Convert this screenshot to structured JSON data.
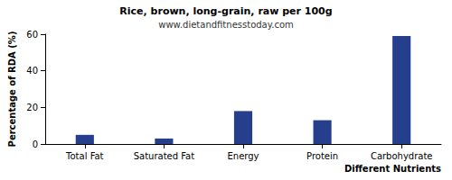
{
  "chart_data": {
    "type": "bar",
    "title": "Rice, brown, long-grain, raw per 100g",
    "subtitle": "www.dietandfitnesstoday.com",
    "x_label": "Different Nutrients",
    "y_label": "Percentage of RDA (%)",
    "categories": [
      "Total Fat",
      "Saturated Fat",
      "Energy",
      "Protein",
      "Carbohydrate"
    ],
    "values": [
      5,
      3,
      18,
      13,
      59
    ],
    "color": "#253f8c",
    "ylim": [
      0,
      60
    ],
    "yticks": [
      0,
      20,
      40,
      60
    ],
    "grid": false
  }
}
